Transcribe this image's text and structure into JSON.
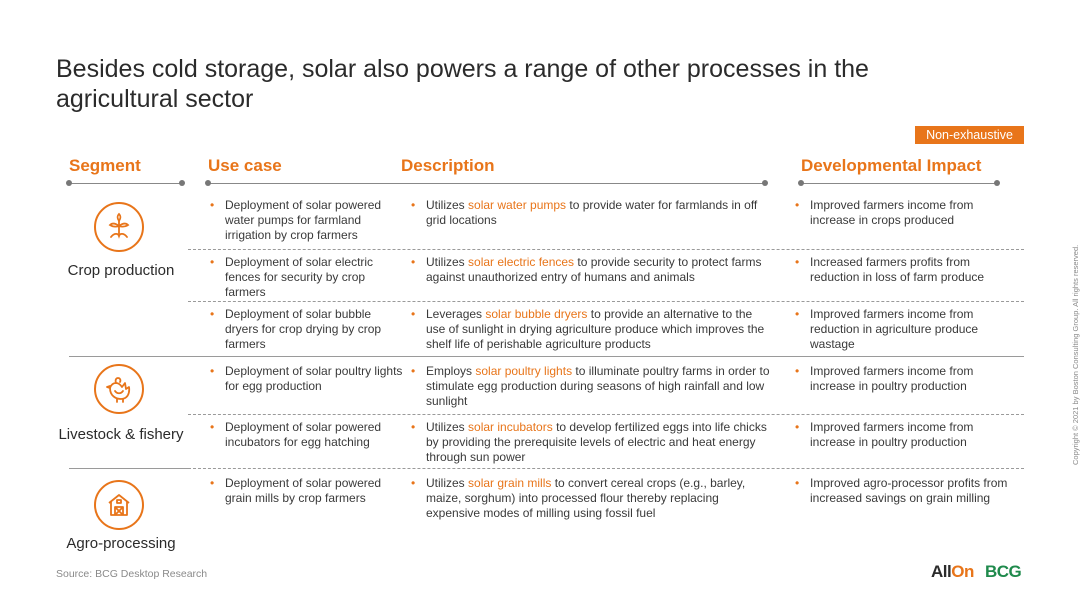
{
  "title": "Besides cold storage, solar also powers a range of other processes in the agricultural sector",
  "badge": "Non-exhaustive",
  "headers": {
    "segment": "Segment",
    "use_case": "Use case",
    "description": "Description",
    "impact": "Developmental Impact"
  },
  "segments": {
    "crop": {
      "label": "Crop production",
      "icon": "plant-sprout-icon"
    },
    "livestock": {
      "label": "Livestock & fishery",
      "icon": "hen-icon"
    },
    "agro": {
      "label": "Agro-processing",
      "icon": "barn-icon"
    }
  },
  "rows": [
    {
      "use_case": "Deployment of solar powered water pumps for farmland irrigation by crop farmers",
      "desc_pre": "Utilizes ",
      "desc_hl": "solar water pumps",
      "desc_post": " to provide water for farmlands in off grid locations",
      "impact": "Improved farmers income from increase in crops produced"
    },
    {
      "use_case": "Deployment of solar electric fences for security by crop farmers",
      "desc_pre": "Utilizes ",
      "desc_hl": "solar electric fences",
      "desc_post": " to provide security to protect farms against unauthorized entry of humans and animals",
      "impact": "Increased farmers profits from reduction in loss of farm produce"
    },
    {
      "use_case": "Deployment of solar bubble dryers for crop drying by crop farmers",
      "desc_pre": "Leverages ",
      "desc_hl": "solar bubble dryers",
      "desc_post": " to provide an alternative to the use of sunlight in drying agriculture produce which improves the shelf life of perishable agriculture products",
      "impact": "Improved farmers income from reduction in agriculture produce wastage"
    },
    {
      "use_case": "Deployment of solar poultry lights for egg production",
      "desc_pre": "Employs ",
      "desc_hl": "solar poultry lights",
      "desc_post": " to illuminate poultry farms in order to stimulate egg production during seasons of high rainfall and low sunlight",
      "impact": "Improved farmers income from increase in poultry production"
    },
    {
      "use_case": "Deployment of solar powered incubators for egg hatching",
      "desc_pre": "Utilizes ",
      "desc_hl": "solar incubators",
      "desc_post": " to develop fertilized eggs into life chicks by providing the prerequisite levels of electric and heat energy through sun power",
      "impact": "Improved farmers income from increase in poultry production"
    },
    {
      "use_case": "Deployment of solar powered grain mills by crop farmers",
      "desc_pre": "Utilizes ",
      "desc_hl": "solar grain mills",
      "desc_post": " to convert cereal crops (e.g., barley, maize, sorghum) into processed flour thereby replacing expensive modes of milling using fossil fuel",
      "impact": "Improved agro-processor profits from increased savings on grain milling"
    }
  ],
  "bullet": "•",
  "source": "Source: BCG Desktop Research",
  "copyright": "Copyright © 2021 by Boston Consulting Group. All rights reserved.",
  "logos": {
    "allon_prefix": "All",
    "allon_suffix": "On",
    "bcg": "BCG"
  },
  "colors": {
    "accent": "#e8751a",
    "text": "#3a3a3a",
    "bcg_green": "#1f8a4c"
  }
}
